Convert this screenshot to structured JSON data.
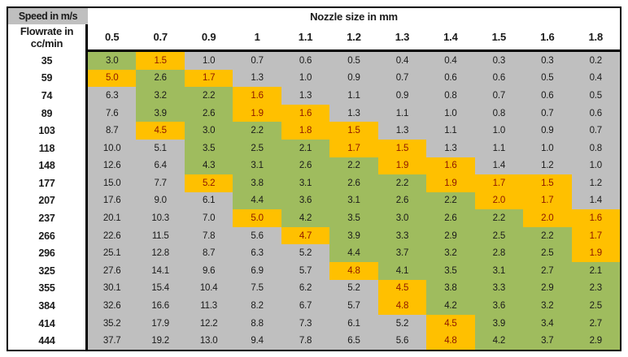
{
  "palette": {
    "fills_hex": {
      "gray": "#BFBFBF",
      "green": "#9FBC5E",
      "orange": "#FFC000"
    },
    "text_hex": {
      "default": "#1A1A1A",
      "on_orange": "#8E1600"
    },
    "border_hex": "#000000",
    "background_hex": "#FFFFFF"
  },
  "chart_data": {
    "type": "table",
    "title": "Nozzle size in mm",
    "corner_label": "Speed in m/s",
    "row_axis_label": "Flowrate in cc/min",
    "row_axis_label_lines": [
      "Flowrate in",
      "cc/min"
    ],
    "columns": [
      "0.5",
      "0.7",
      "0.9",
      "1",
      "1.1",
      "1.2",
      "1.3",
      "1.4",
      "1.5",
      "1.6",
      "1.8"
    ],
    "cell_fill_codes": {
      "n": "gray",
      "g": "green",
      "y": "orange"
    },
    "rows": [
      {
        "flowrate": "35",
        "values": [
          "3.0",
          "1.5",
          "1.0",
          "0.7",
          "0.6",
          "0.5",
          "0.4",
          "0.4",
          "0.3",
          "0.3",
          "0.2"
        ],
        "colors": "gynnnnnnnnn"
      },
      {
        "flowrate": "59",
        "values": [
          "5.0",
          "2.6",
          "1.7",
          "1.3",
          "1.0",
          "0.9",
          "0.7",
          "0.6",
          "0.6",
          "0.5",
          "0.4"
        ],
        "colors": "ygynnnnnnnn"
      },
      {
        "flowrate": "74",
        "values": [
          "6.3",
          "3.2",
          "2.2",
          "1.6",
          "1.3",
          "1.1",
          "0.9",
          "0.8",
          "0.7",
          "0.6",
          "0.5"
        ],
        "colors": "nggynnnnnnn"
      },
      {
        "flowrate": "89",
        "values": [
          "7.6",
          "3.9",
          "2.6",
          "1.9",
          "1.6",
          "1.3",
          "1.1",
          "1.0",
          "0.8",
          "0.7",
          "0.6"
        ],
        "colors": "nggyynnnnnn"
      },
      {
        "flowrate": "103",
        "values": [
          "8.7",
          "4.5",
          "3.0",
          "2.2",
          "1.8",
          "1.5",
          "1.3",
          "1.1",
          "1.0",
          "0.9",
          "0.7"
        ],
        "colors": "nyggyynnnnn"
      },
      {
        "flowrate": "118",
        "values": [
          "10.0",
          "5.1",
          "3.5",
          "2.5",
          "2.1",
          "1.7",
          "1.5",
          "1.3",
          "1.1",
          "1.0",
          "0.8"
        ],
        "colors": "nngggyynnnn"
      },
      {
        "flowrate": "148",
        "values": [
          "12.6",
          "6.4",
          "4.3",
          "3.1",
          "2.6",
          "2.2",
          "1.9",
          "1.6",
          "1.4",
          "1.2",
          "1.0"
        ],
        "colors": "nnggggyynnn"
      },
      {
        "flowrate": "177",
        "values": [
          "15.0",
          "7.7",
          "5.2",
          "3.8",
          "3.1",
          "2.6",
          "2.2",
          "1.9",
          "1.7",
          "1.5",
          "1.2"
        ],
        "colors": "nnyggggyyyn"
      },
      {
        "flowrate": "207",
        "values": [
          "17.6",
          "9.0",
          "6.1",
          "4.4",
          "3.6",
          "3.1",
          "2.6",
          "2.2",
          "2.0",
          "1.7",
          "1.4"
        ],
        "colors": "nnngggggyyn"
      },
      {
        "flowrate": "237",
        "values": [
          "20.1",
          "10.3",
          "7.0",
          "5.0",
          "4.2",
          "3.5",
          "3.0",
          "2.6",
          "2.2",
          "2.0",
          "1.6"
        ],
        "colors": "nnnygggggyy"
      },
      {
        "flowrate": "266",
        "values": [
          "22.6",
          "11.5",
          "7.8",
          "5.6",
          "4.7",
          "3.9",
          "3.3",
          "2.9",
          "2.5",
          "2.2",
          "1.7"
        ],
        "colors": "nnnnygggggy"
      },
      {
        "flowrate": "296",
        "values": [
          "25.1",
          "12.8",
          "8.7",
          "6.3",
          "5.2",
          "4.4",
          "3.7",
          "3.2",
          "2.8",
          "2.5",
          "1.9"
        ],
        "colors": "nnnnngggggy"
      },
      {
        "flowrate": "325",
        "values": [
          "27.6",
          "14.1",
          "9.6",
          "6.9",
          "5.7",
          "4.8",
          "4.1",
          "3.5",
          "3.1",
          "2.7",
          "2.1"
        ],
        "colors": "nnnnnyggggg"
      },
      {
        "flowrate": "355",
        "values": [
          "30.1",
          "15.4",
          "10.4",
          "7.5",
          "6.2",
          "5.2",
          "4.5",
          "3.8",
          "3.3",
          "2.9",
          "2.3"
        ],
        "colors": "nnnnnnygggg"
      },
      {
        "flowrate": "384",
        "values": [
          "32.6",
          "16.6",
          "11.3",
          "8.2",
          "6.7",
          "5.7",
          "4.8",
          "4.2",
          "3.6",
          "3.2",
          "2.5"
        ],
        "colors": "nnnnnnygggg"
      },
      {
        "flowrate": "414",
        "values": [
          "35.2",
          "17.9",
          "12.2",
          "8.8",
          "7.3",
          "6.1",
          "5.2",
          "4.5",
          "3.9",
          "3.4",
          "2.7"
        ],
        "colors": "nnnnnnnyggg"
      },
      {
        "flowrate": "444",
        "values": [
          "37.7",
          "19.2",
          "13.0",
          "9.4",
          "7.8",
          "6.5",
          "5.6",
          "4.8",
          "4.2",
          "3.7",
          "2.9"
        ],
        "colors": "nnnnnnnyggg"
      }
    ]
  }
}
